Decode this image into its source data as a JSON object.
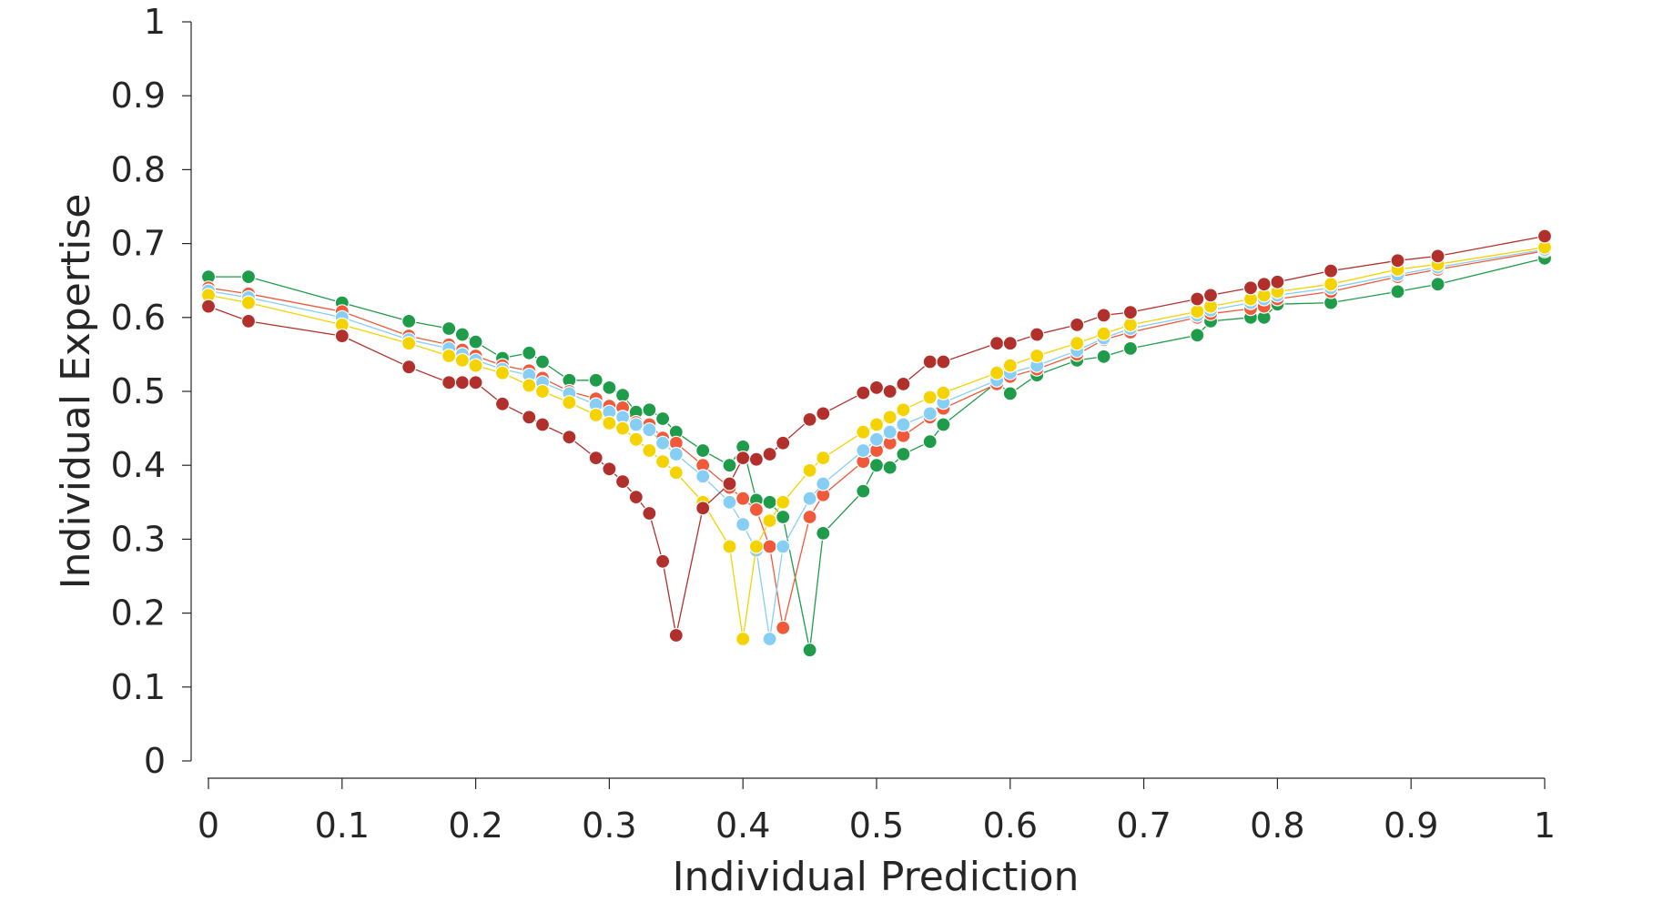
{
  "chart_data": {
    "type": "line",
    "xlabel": "Individual Prediction",
    "ylabel": "Individual Expertise",
    "xlim": [
      0,
      1
    ],
    "ylim": [
      0,
      1
    ],
    "xticks": [
      0,
      0.1,
      0.2,
      0.3,
      0.4,
      0.5,
      0.6,
      0.7,
      0.8,
      0.9,
      1
    ],
    "xtick_labels": [
      "0",
      "0.1",
      "0.2",
      "0.3",
      "0.4",
      "0.5",
      "0.6",
      "0.7",
      "0.8",
      "0.9",
      "1"
    ],
    "yticks": [
      0,
      0.1,
      0.2,
      0.3,
      0.4,
      0.5,
      0.6,
      0.7,
      0.8,
      0.9,
      1
    ],
    "ytick_labels": [
      "0",
      "0.1",
      "0.2",
      "0.3",
      "0.4",
      "0.5",
      "0.6",
      "0.7",
      "0.8",
      "0.9",
      "1"
    ],
    "grid": false,
    "legend": "none",
    "marker": "circle",
    "series": [
      {
        "color": "#1f9c4a",
        "x": [
          0,
          0.03,
          0.1,
          0.15,
          0.18,
          0.19,
          0.2,
          0.22,
          0.24,
          0.25,
          0.27,
          0.29,
          0.3,
          0.31,
          0.32,
          0.33,
          0.34,
          0.35,
          0.37,
          0.39,
          0.4,
          0.41,
          0.42,
          0.43,
          0.45,
          0.46,
          0.49,
          0.5,
          0.51,
          0.52,
          0.54,
          0.55,
          0.59,
          0.6,
          0.62,
          0.65,
          0.67,
          0.69,
          0.74,
          0.75,
          0.78,
          0.79,
          0.8,
          0.84,
          0.89,
          0.92,
          1
        ],
        "y": [
          0.655,
          0.655,
          0.62,
          0.595,
          0.585,
          0.577,
          0.567,
          0.545,
          0.552,
          0.54,
          0.515,
          0.515,
          0.505,
          0.495,
          0.472,
          0.475,
          0.463,
          0.445,
          0.42,
          0.4,
          0.425,
          0.353,
          0.35,
          0.33,
          0.15,
          0.308,
          0.365,
          0.4,
          0.397,
          0.415,
          0.432,
          0.455,
          0.512,
          0.497,
          0.522,
          0.542,
          0.547,
          0.558,
          0.576,
          0.595,
          0.6,
          0.6,
          0.618,
          0.62,
          0.635,
          0.645,
          0.68
        ]
      },
      {
        "color": "#f05a3a",
        "x": [
          0,
          0.03,
          0.1,
          0.15,
          0.18,
          0.19,
          0.2,
          0.22,
          0.24,
          0.25,
          0.27,
          0.29,
          0.3,
          0.31,
          0.32,
          0.33,
          0.34,
          0.35,
          0.37,
          0.39,
          0.4,
          0.41,
          0.42,
          0.43,
          0.45,
          0.46,
          0.49,
          0.5,
          0.51,
          0.52,
          0.54,
          0.55,
          0.59,
          0.6,
          0.62,
          0.65,
          0.67,
          0.69,
          0.74,
          0.75,
          0.78,
          0.79,
          0.8,
          0.84,
          0.89,
          0.92,
          1
        ],
        "y": [
          0.64,
          0.632,
          0.608,
          0.575,
          0.563,
          0.556,
          0.548,
          0.535,
          0.528,
          0.518,
          0.5,
          0.49,
          0.48,
          0.478,
          0.458,
          0.455,
          0.437,
          0.43,
          0.4,
          0.37,
          0.355,
          0.34,
          0.29,
          0.18,
          0.33,
          0.36,
          0.405,
          0.42,
          0.43,
          0.44,
          0.465,
          0.477,
          0.51,
          0.52,
          0.53,
          0.55,
          0.57,
          0.58,
          0.6,
          0.605,
          0.612,
          0.615,
          0.625,
          0.635,
          0.655,
          0.665,
          0.69
        ]
      },
      {
        "color": "#87cef5",
        "x": [
          0,
          0.03,
          0.1,
          0.15,
          0.18,
          0.19,
          0.2,
          0.22,
          0.24,
          0.25,
          0.27,
          0.29,
          0.3,
          0.31,
          0.32,
          0.33,
          0.34,
          0.35,
          0.37,
          0.39,
          0.4,
          0.41,
          0.42,
          0.43,
          0.45,
          0.46,
          0.49,
          0.5,
          0.51,
          0.52,
          0.54,
          0.55,
          0.59,
          0.6,
          0.62,
          0.65,
          0.67,
          0.69,
          0.74,
          0.75,
          0.78,
          0.79,
          0.8,
          0.84,
          0.89,
          0.92,
          1
        ],
        "y": [
          0.636,
          0.627,
          0.6,
          0.57,
          0.558,
          0.55,
          0.542,
          0.53,
          0.522,
          0.512,
          0.497,
          0.482,
          0.472,
          0.465,
          0.455,
          0.448,
          0.43,
          0.415,
          0.385,
          0.35,
          0.32,
          0.285,
          0.165,
          0.29,
          0.355,
          0.375,
          0.42,
          0.435,
          0.445,
          0.455,
          0.47,
          0.485,
          0.515,
          0.525,
          0.535,
          0.555,
          0.572,
          0.585,
          0.603,
          0.61,
          0.62,
          0.625,
          0.63,
          0.64,
          0.658,
          0.668,
          0.692
        ]
      },
      {
        "color": "#f5d300",
        "x": [
          0,
          0.03,
          0.1,
          0.15,
          0.18,
          0.19,
          0.2,
          0.22,
          0.24,
          0.25,
          0.27,
          0.29,
          0.3,
          0.31,
          0.32,
          0.33,
          0.34,
          0.35,
          0.37,
          0.39,
          0.4,
          0.41,
          0.42,
          0.43,
          0.45,
          0.46,
          0.49,
          0.5,
          0.51,
          0.52,
          0.54,
          0.55,
          0.59,
          0.6,
          0.62,
          0.65,
          0.67,
          0.69,
          0.74,
          0.75,
          0.78,
          0.79,
          0.8,
          0.84,
          0.89,
          0.92,
          1
        ],
        "y": [
          0.63,
          0.62,
          0.59,
          0.565,
          0.548,
          0.542,
          0.535,
          0.525,
          0.508,
          0.5,
          0.485,
          0.468,
          0.457,
          0.45,
          0.435,
          0.42,
          0.405,
          0.39,
          0.35,
          0.29,
          0.165,
          0.29,
          0.325,
          0.35,
          0.393,
          0.41,
          0.445,
          0.455,
          0.465,
          0.475,
          0.492,
          0.498,
          0.525,
          0.535,
          0.548,
          0.565,
          0.578,
          0.59,
          0.608,
          0.615,
          0.625,
          0.63,
          0.635,
          0.645,
          0.665,
          0.672,
          0.695
        ]
      },
      {
        "color": "#b2302c",
        "x": [
          0,
          0.03,
          0.1,
          0.15,
          0.18,
          0.19,
          0.2,
          0.22,
          0.24,
          0.25,
          0.27,
          0.29,
          0.3,
          0.31,
          0.32,
          0.33,
          0.34,
          0.35,
          0.37,
          0.39,
          0.4,
          0.41,
          0.42,
          0.43,
          0.45,
          0.46,
          0.49,
          0.5,
          0.51,
          0.52,
          0.54,
          0.55,
          0.59,
          0.6,
          0.62,
          0.65,
          0.67,
          0.69,
          0.74,
          0.75,
          0.78,
          0.79,
          0.8,
          0.84,
          0.89,
          0.92,
          1
        ],
        "y": [
          0.615,
          0.595,
          0.575,
          0.533,
          0.512,
          0.512,
          0.512,
          0.483,
          0.465,
          0.455,
          0.438,
          0.41,
          0.395,
          0.378,
          0.357,
          0.335,
          0.27,
          0.17,
          0.342,
          0.375,
          0.41,
          0.408,
          0.415,
          0.43,
          0.462,
          0.47,
          0.498,
          0.505,
          0.5,
          0.51,
          0.54,
          0.54,
          0.565,
          0.565,
          0.577,
          0.59,
          0.603,
          0.607,
          0.625,
          0.63,
          0.64,
          0.645,
          0.648,
          0.663,
          0.677,
          0.683,
          0.71
        ]
      }
    ]
  }
}
